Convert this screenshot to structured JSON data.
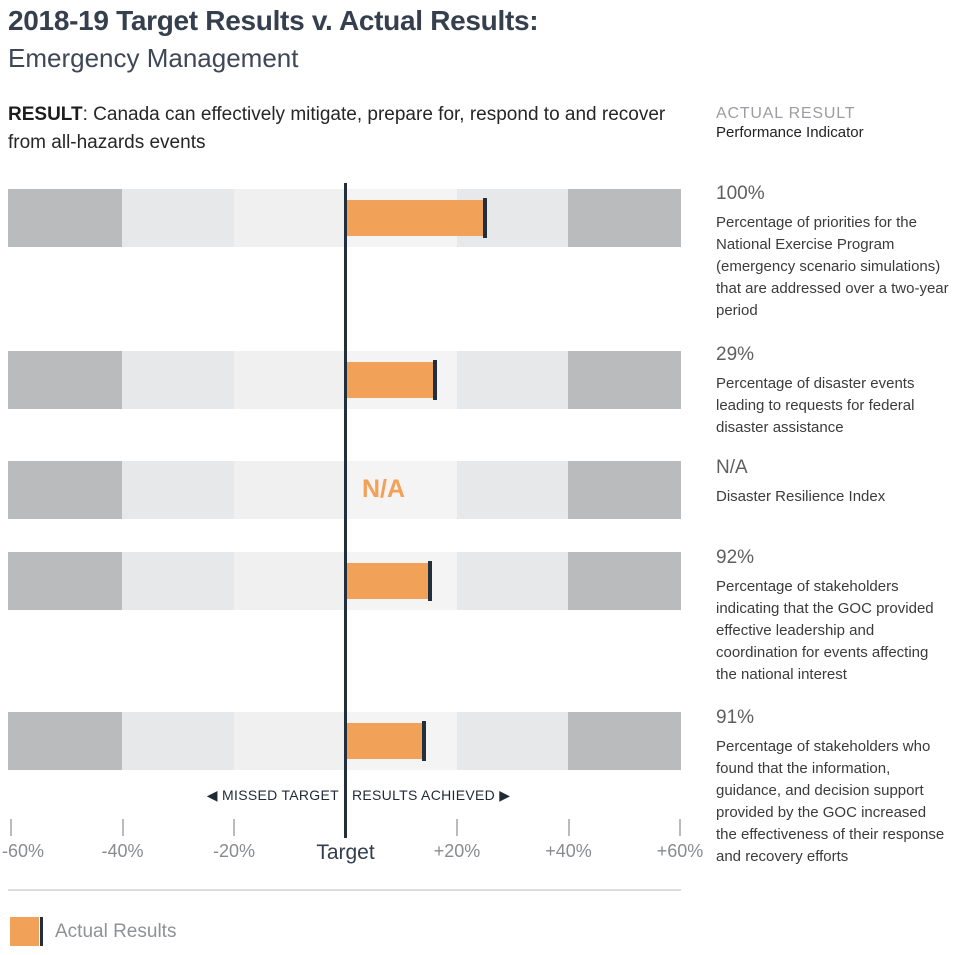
{
  "header": {
    "title_line1": "2018-19 Target Results v. Actual Results:",
    "title_line2": "Emergency Management",
    "result_label": "RESULT",
    "result_text": ": Canada can effectively mitigate, prepare for, respond to and recover from all-hazards events"
  },
  "right_panel": {
    "header_line1": "ACTUAL RESULT",
    "header_line2": "Performance Indicator"
  },
  "chart_data": {
    "type": "bar",
    "title": "2018-19 Target Results v. Actual Results: Emergency Management",
    "orientation": "horizontal",
    "x_axis": {
      "tick_labels": [
        "-60%",
        "-40%",
        "-20%",
        "Target",
        "+20%",
        "+40%",
        "+60%"
      ],
      "tick_values": [
        -60,
        -40,
        -20,
        0,
        20,
        40,
        60
      ],
      "range_percent_vs_target": [
        -60,
        60
      ],
      "target_value": 0
    },
    "zone_labels": {
      "left": "◀ MISSED TARGET",
      "right": "RESULTS ACHIEVED ▶"
    },
    "rows": [
      {
        "actual_result": "100%",
        "indicator": "Percentage of priorities for the National Exercise Program (emergency scenario simulations) that are addressed over a two-year period",
        "bar_vs_target_percent": 25,
        "na": false
      },
      {
        "actual_result": "29%",
        "indicator": "Percentage of disaster events leading to requests for federal disaster assistance",
        "bar_vs_target_percent": 16,
        "na": false
      },
      {
        "actual_result": "N/A",
        "indicator": "Disaster Resilience Index",
        "bar_vs_target_percent": null,
        "na": true,
        "na_label": "N/A"
      },
      {
        "actual_result": "92%",
        "indicator": "Percentage of stakeholders indicating that the GOC provided effective leadership and coordination for events affecting the national interest",
        "bar_vs_target_percent": 15,
        "na": false
      },
      {
        "actual_result": "91%",
        "indicator": "Percentage of stakeholders who found that the information, guidance, and decision support provided by the GOC increased the effectiveness of their response and recovery efforts",
        "bar_vs_target_percent": 14,
        "na": false
      }
    ],
    "legend": [
      {
        "label": "Actual Results",
        "swatch": "orange-bar-with-navy-end-marker"
      }
    ]
  },
  "colors": {
    "accent_orange": "#F2A158",
    "navy": "#222F3D",
    "title_navy": "#353F4E",
    "band_dark": "#BABBBD",
    "band_mid": "#E7E8E9",
    "band_light": "#F0F0F1",
    "band_lighter": "#F4F4F5",
    "divider_gray": "#DCDCDC"
  }
}
